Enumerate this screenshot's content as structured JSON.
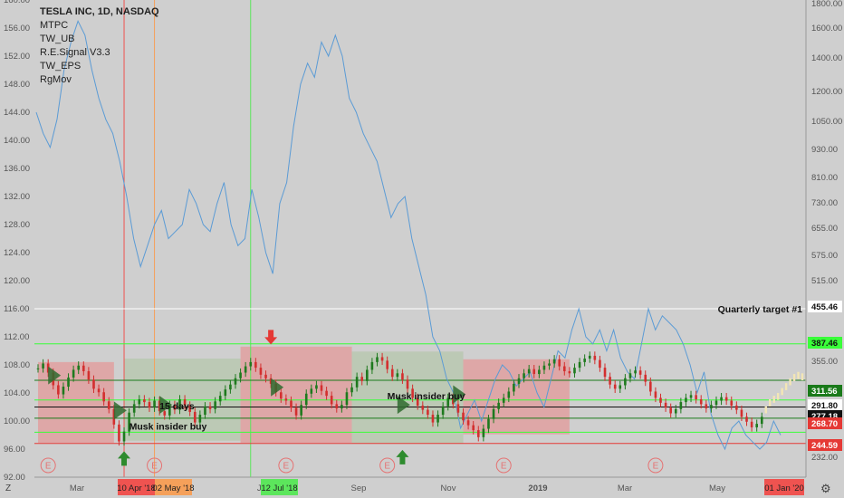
{
  "legend": {
    "title": "TESLA INC, 1D, NASDAQ",
    "studies": [
      "MTPC",
      "TW_UB",
      "R.E.Signal V3.3",
      "TW_EPS",
      "RgMov"
    ]
  },
  "chart_data": {
    "type": "line",
    "title": "TESLA INC, 1D, NASDAQ",
    "left_axis": {
      "ticks": [
        "160.00",
        "156.00",
        "152.00",
        "148.00",
        "144.00",
        "140.00",
        "136.00",
        "132.00",
        "128.00",
        "124.00",
        "120.00",
        "116.00",
        "112.00",
        "108.00",
        "104.00",
        "100.00",
        "96.00",
        "92.00"
      ],
      "range": [
        92,
        160
      ]
    },
    "right_axis": {
      "scale": "log",
      "ticks": [
        "1800.00",
        "1600.00",
        "1400.00",
        "1200.00",
        "1050.00",
        "930.00",
        "810.00",
        "730.00",
        "655.00",
        "575.00",
        "515.00",
        "455.46",
        "355.00",
        "291.80",
        "232.00"
      ],
      "price_labels": [
        {
          "value": "455.46",
          "color": "#ffffff"
        },
        {
          "value": "387.46",
          "color": "#39ff39"
        },
        {
          "value": "311.56",
          "color": "#1a7a1a"
        },
        {
          "value": "291.80",
          "color": "#ffffff"
        },
        {
          "value": "277.18",
          "color": "#111111"
        },
        {
          "value": "268.70",
          "color": "#e53935"
        },
        {
          "value": "244.59",
          "color": "#e53935"
        }
      ]
    },
    "x_axis": {
      "ticks": [
        "Mar",
        "Jul",
        "Sep",
        "Nov",
        "2019",
        "Mar",
        "May"
      ],
      "highlighted": [
        {
          "label": "10 Apr '18",
          "color": "#ef5350"
        },
        {
          "label": "02 May '18",
          "color": "#f5a05a"
        },
        {
          "label": "12 Jul '18",
          "color": "#5ce65c"
        },
        {
          "label": "01 Jan '20",
          "color": "#ef5350"
        }
      ]
    },
    "series": [
      {
        "kind": "line",
        "color": "#5b9bd5",
        "values": [
          144,
          141,
          139,
          143,
          150,
          154,
          157,
          155,
          150,
          146,
          143,
          141,
          137,
          132,
          126,
          122,
          125,
          128,
          130,
          126,
          127,
          128,
          133,
          131,
          128,
          127,
          131,
          134,
          128,
          125,
          126,
          133,
          129,
          124,
          121,
          131,
          134,
          142,
          148,
          151,
          149,
          154,
          152,
          155,
          152,
          146,
          144,
          141,
          139,
          137,
          133,
          129,
          131,
          132,
          126,
          122,
          118,
          112,
          110,
          106,
          104,
          99,
          101,
          103,
          100,
          103,
          106,
          108,
          107,
          105,
          106,
          107,
          104,
          102,
          106,
          110,
          109,
          113,
          116,
          112,
          111,
          113,
          110,
          113,
          109,
          107,
          106,
          111,
          116,
          113,
          115,
          114,
          113,
          111,
          108,
          104,
          107,
          101,
          98,
          96,
          99,
          100,
          98,
          97,
          96,
          97,
          100,
          98
        ]
      },
      {
        "kind": "candles",
        "up_color": "#1e7a1e",
        "down_color": "#d32f2f",
        "closes": [
          107.5,
          108.2,
          106.9,
          105.1,
          103.8,
          104.9,
          106.2,
          107.3,
          107.9,
          107.1,
          105.9,
          104.6,
          104.1,
          102.8,
          101.7,
          99.5,
          97.1,
          98.5,
          101.2,
          102.4,
          103.1,
          102.7,
          101.9,
          102.9,
          101.4,
          100.8,
          102.3,
          101.6,
          103.1,
          102.2,
          101.3,
          99.8,
          100.9,
          102.1,
          101.7,
          102.8,
          103.6,
          104.5,
          105.2,
          106.1,
          106.9,
          107.8,
          108.4,
          107.6,
          106.6,
          106.1,
          105.3,
          104.1,
          103.2,
          102.9,
          101.9,
          100.8,
          102.3,
          103.9,
          104.6,
          105.1,
          104.3,
          103.6,
          102.4,
          101.8,
          102.3,
          104.1,
          104.8,
          106.3,
          105.7,
          107.3,
          108.4,
          109.1,
          108.6,
          107.4,
          106.3,
          106.8,
          105.9,
          104.6,
          103.3,
          102.2,
          101.6,
          100.9,
          99.8,
          100.9,
          102.1,
          103.3,
          102.4,
          101.2,
          100.1,
          99.4,
          98.7,
          97.7,
          98.9,
          100.3,
          101.7,
          102.6,
          103.3,
          104.2,
          105.3,
          106.1,
          106.8,
          107.4,
          106.7,
          107.3,
          107.9,
          108.2,
          108.8,
          107.8,
          107.1,
          106.8,
          107.6,
          108.4,
          108.9,
          109.3,
          108.7,
          107.6,
          106.3,
          105.2,
          104.6,
          105.1,
          106.1,
          106.8,
          107.2,
          106.6,
          105.6,
          104.2,
          103.3,
          102.6,
          101.9,
          101.1,
          101.7,
          102.7,
          103.3,
          103.7,
          103.1,
          102.4,
          101.8,
          102.3,
          102.9,
          103.4,
          102.9,
          102.2,
          101.6,
          100.6,
          99.9,
          99.1,
          99.6,
          100.6
        ]
      },
      {
        "kind": "forecast",
        "color": "#f3e6b5",
        "values": [
          100.6,
          101.6,
          102.6,
          103.1,
          103.5,
          104.2,
          104.9,
          105.6,
          106.2,
          106.5,
          106.3,
          105.9,
          106.3,
          106.8,
          107.2,
          106.6,
          106.1,
          106.3,
          106.7,
          106.4,
          106.1,
          105.6,
          105.2,
          105.7,
          106.2,
          107.3,
          108.3,
          109.1,
          109.6,
          110.2
        ]
      }
    ],
    "horizontal_levels": [
      {
        "value": 111.0,
        "color": "#39ff39",
        "label": "387.46"
      },
      {
        "value": 105.8,
        "color": "#1a7a1a",
        "label": "311.56"
      },
      {
        "value": 103.0,
        "color": "#39ff39",
        "label": "291.80"
      },
      {
        "value": 102.0,
        "color": "#111111",
        "label": "277.18"
      },
      {
        "value": 100.4,
        "color": "#1a7a1a",
        "label": ""
      },
      {
        "value": 98.4,
        "color": "#39ff39",
        "label": ""
      },
      {
        "value": 96.8,
        "color": "#e53935",
        "label": "244.59"
      },
      {
        "value": 116.0,
        "color": "#ffffff",
        "label": "455.46"
      }
    ],
    "zones": [
      {
        "x": [
          0,
          15
        ],
        "y": [
          96.9,
          108.4
        ],
        "color": "#e0a0a0"
      },
      {
        "x": [
          17,
          40
        ],
        "y": [
          97.2,
          108.9
        ],
        "color": "#b8c8b0"
      },
      {
        "x": [
          40,
          62
        ],
        "y": [
          96.9,
          110.6
        ],
        "color": "#e0a0a0"
      },
      {
        "x": [
          62,
          84
        ],
        "y": [
          96.8,
          109.9
        ],
        "color": "#b8c8b0"
      },
      {
        "x": [
          84,
          105
        ],
        "y": [
          98.1,
          108.8
        ],
        "color": "#e0a0a0"
      }
    ],
    "vertical_markers": [
      {
        "x": 17,
        "color": "#ef5350"
      },
      {
        "x": 23,
        "color": "#f5a05a"
      },
      {
        "x": 42,
        "color": "#5ce65c"
      }
    ],
    "annotations": [
      {
        "text": "Quarterly target #1",
        "x": 117,
        "y": 116.0
      },
      {
        "text": "Musk insider buy",
        "x": 18,
        "y": 99.3
      },
      {
        "text": "Musk insider buy",
        "x": 69,
        "y": 103.6
      },
      {
        "text": "15 days",
        "x": 24,
        "y": 102.2
      }
    ],
    "earnings_markers": [
      2,
      23,
      49,
      69,
      92,
      122
    ]
  }
}
